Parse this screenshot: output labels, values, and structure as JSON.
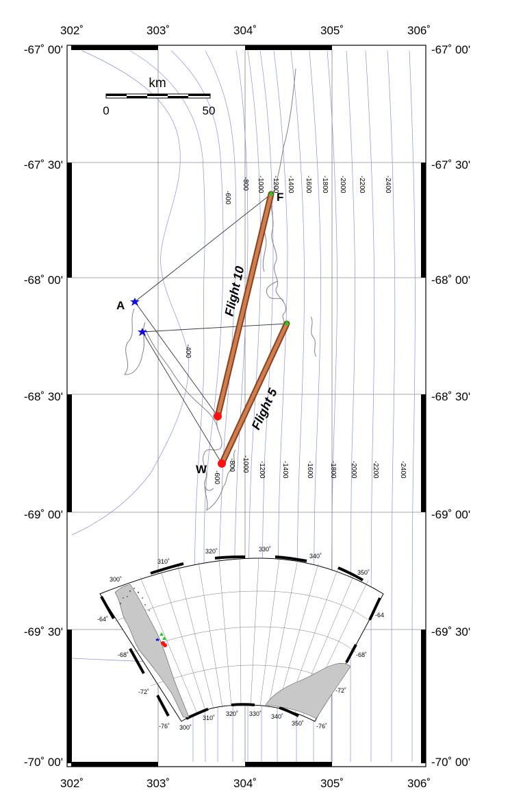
{
  "map": {
    "lon_labels": [
      "302˚",
      "303˚",
      "304˚",
      "305˚",
      "306˚"
    ],
    "lat_labels": [
      "-67˚ 00'",
      "-67˚ 30'",
      "-68˚ 00'",
      "-68˚ 30'",
      "-69˚ 00'",
      "-69˚ 30'",
      "-70˚ 00'"
    ],
    "scale_bar": {
      "unit": "km",
      "min_label": "0",
      "max_label": "50"
    },
    "points": {
      "A": "A",
      "F": "F",
      "W": "W"
    },
    "flights": [
      {
        "label": "Flight 10"
      },
      {
        "label": "Flight 5"
      }
    ],
    "contours_north": [
      "-600",
      "-800",
      "-1000",
      "-1200",
      "-1400",
      "-1600",
      "-1800",
      "-2000",
      "-2200",
      "-2400"
    ],
    "contours_south": [
      "-600",
      "-800",
      "-1000",
      "-1200",
      "-1400",
      "-1600",
      "-1800",
      "-2000",
      "-2200",
      "-2400"
    ],
    "contour_west": "-400",
    "colors": {
      "flight": "#a0522d",
      "flight_fill": "#cd7f4f",
      "contour": "#8a90d8",
      "coast": "#808080",
      "start": "#ff1010",
      "turn": "#22cc22",
      "station": "#1010dd"
    }
  },
  "inset": {
    "lon_top": [
      "300˚",
      "310˚",
      "320˚",
      "330˚",
      "340˚",
      "350˚"
    ],
    "lon_bottom": [
      "300˚",
      "310˚",
      "320˚",
      "330˚",
      "340˚",
      "350˚"
    ],
    "lat_left": [
      "-64˚",
      "-68˚",
      "-72˚",
      "-76˚"
    ],
    "lat_right": [
      "-64",
      "-68˚",
      "-72˚",
      "-76˚"
    ]
  }
}
